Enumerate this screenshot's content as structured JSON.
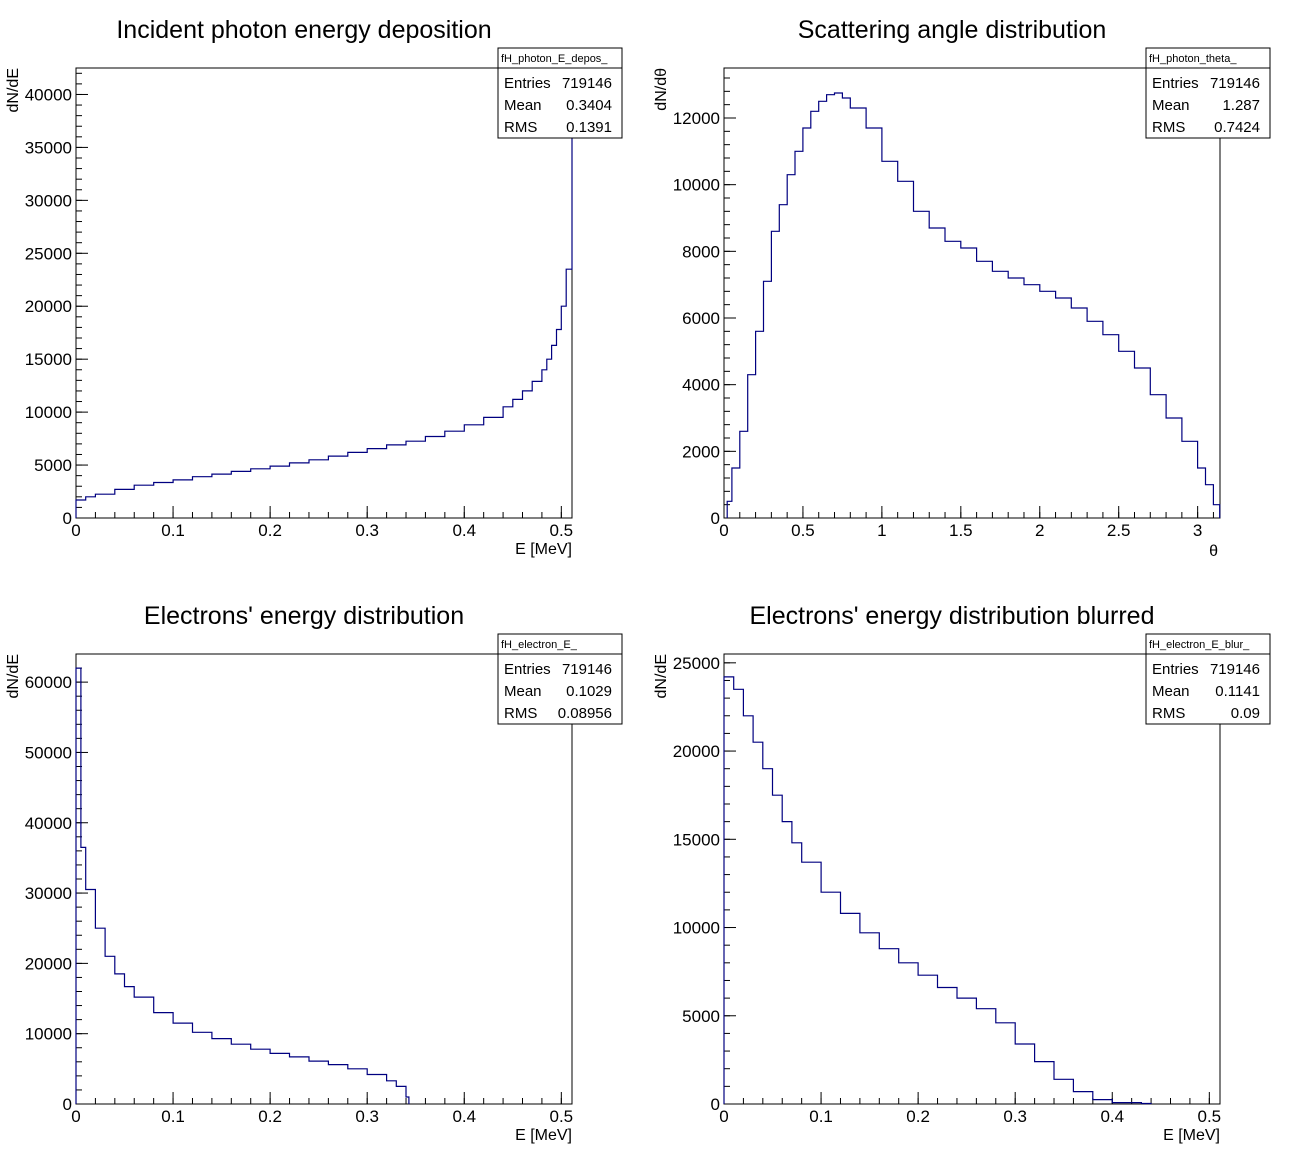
{
  "chart_data": [
    {
      "type": "histogram",
      "name": "fH_photon_E_depos_",
      "title": "Incident photon energy deposition",
      "xlabel": "E [MeV]",
      "ylabel": "dN/dE",
      "xlim": [
        0,
        0.511
      ],
      "ylim": [
        0,
        42500
      ],
      "xticks": [
        "0",
        "0.1",
        "0.2",
        "0.3",
        "0.4",
        "0.5"
      ],
      "yticks": [
        "0",
        "5000",
        "10000",
        "15000",
        "20000",
        "25000",
        "30000",
        "35000",
        "40000"
      ],
      "stats": {
        "header": "fH_photon_E_depos_",
        "entries": "719146",
        "mean": "0.3404",
        "rms": "0.1391"
      },
      "bins": [
        [
          0,
          1700
        ],
        [
          0.01,
          2000
        ],
        [
          0.02,
          2250
        ],
        [
          0.04,
          2700
        ],
        [
          0.06,
          3100
        ],
        [
          0.08,
          3350
        ],
        [
          0.1,
          3600
        ],
        [
          0.12,
          3900
        ],
        [
          0.14,
          4150
        ],
        [
          0.16,
          4400
        ],
        [
          0.18,
          4650
        ],
        [
          0.2,
          4900
        ],
        [
          0.22,
          5200
        ],
        [
          0.24,
          5500
        ],
        [
          0.26,
          5850
        ],
        [
          0.28,
          6200
        ],
        [
          0.3,
          6550
        ],
        [
          0.32,
          6900
        ],
        [
          0.34,
          7250
        ],
        [
          0.36,
          7700
        ],
        [
          0.38,
          8200
        ],
        [
          0.4,
          8800
        ],
        [
          0.42,
          9500
        ],
        [
          0.44,
          10500
        ],
        [
          0.45,
          11200
        ],
        [
          0.46,
          12000
        ],
        [
          0.47,
          12900
        ],
        [
          0.48,
          14000
        ],
        [
          0.485,
          15000
        ],
        [
          0.49,
          16300
        ],
        [
          0.495,
          17800
        ],
        [
          0.5,
          20000
        ],
        [
          0.505,
          23500
        ],
        [
          0.511,
          42000
        ]
      ]
    },
    {
      "type": "histogram",
      "name": "fH_photon_theta_",
      "title": "Scattering angle distribution",
      "xlabel": "θ",
      "ylabel": "dN/dθ",
      "xlim": [
        0,
        3.1416
      ],
      "ylim": [
        0,
        13500
      ],
      "xticks": [
        "0",
        "0.5",
        "1",
        "1.5",
        "2",
        "2.5",
        "3"
      ],
      "yticks": [
        "0",
        "2000",
        "4000",
        "6000",
        "8000",
        "10000",
        "12000"
      ],
      "stats": {
        "header": "fH_photon_theta_",
        "entries": "719146",
        "mean": "1.287",
        "rms": "0.7424"
      },
      "bins": [
        [
          0.02,
          500
        ],
        [
          0.05,
          1500
        ],
        [
          0.1,
          2600
        ],
        [
          0.15,
          4300
        ],
        [
          0.2,
          5600
        ],
        [
          0.25,
          7100
        ],
        [
          0.3,
          8600
        ],
        [
          0.35,
          9400
        ],
        [
          0.4,
          10300
        ],
        [
          0.45,
          11000
        ],
        [
          0.5,
          11700
        ],
        [
          0.55,
          12200
        ],
        [
          0.6,
          12500
        ],
        [
          0.65,
          12700
        ],
        [
          0.7,
          12750
        ],
        [
          0.75,
          12600
        ],
        [
          0.8,
          12300
        ],
        [
          0.9,
          11700
        ],
        [
          1.0,
          10700
        ],
        [
          1.1,
          10100
        ],
        [
          1.2,
          9200
        ],
        [
          1.3,
          8700
        ],
        [
          1.4,
          8300
        ],
        [
          1.5,
          8100
        ],
        [
          1.6,
          7700
        ],
        [
          1.7,
          7400
        ],
        [
          1.8,
          7200
        ],
        [
          1.9,
          7000
        ],
        [
          2.0,
          6800
        ],
        [
          2.1,
          6600
        ],
        [
          2.2,
          6300
        ],
        [
          2.3,
          5900
        ],
        [
          2.4,
          5500
        ],
        [
          2.5,
          5000
        ],
        [
          2.6,
          4500
        ],
        [
          2.7,
          3700
        ],
        [
          2.8,
          3000
        ],
        [
          2.9,
          2300
        ],
        [
          3.0,
          1500
        ],
        [
          3.05,
          1000
        ],
        [
          3.1,
          400
        ],
        [
          3.14,
          0
        ]
      ]
    },
    {
      "type": "histogram",
      "name": "fH_electron_E_",
      "title": "Electrons' energy distribution",
      "xlabel": "E [MeV]",
      "ylabel": "dN/dE",
      "xlim": [
        0,
        0.511
      ],
      "ylim": [
        0,
        64000
      ],
      "xticks": [
        "0",
        "0.1",
        "0.2",
        "0.3",
        "0.4",
        "0.5"
      ],
      "yticks": [
        "0",
        "10000",
        "20000",
        "30000",
        "40000",
        "50000",
        "60000"
      ],
      "stats": {
        "header": "fH_electron_E_",
        "entries": "719146",
        "mean": "0.1029",
        "rms": "0.08956"
      },
      "bins": [
        [
          0,
          62000
        ],
        [
          0.005,
          36500
        ],
        [
          0.01,
          30500
        ],
        [
          0.02,
          25000
        ],
        [
          0.03,
          21000
        ],
        [
          0.04,
          18500
        ],
        [
          0.05,
          16700
        ],
        [
          0.06,
          15200
        ],
        [
          0.08,
          13000
        ],
        [
          0.1,
          11500
        ],
        [
          0.12,
          10200
        ],
        [
          0.14,
          9300
        ],
        [
          0.16,
          8500
        ],
        [
          0.18,
          7800
        ],
        [
          0.2,
          7200
        ],
        [
          0.22,
          6700
        ],
        [
          0.24,
          6100
        ],
        [
          0.26,
          5600
        ],
        [
          0.28,
          5000
        ],
        [
          0.3,
          4200
        ],
        [
          0.32,
          3300
        ],
        [
          0.33,
          2500
        ],
        [
          0.34,
          1000
        ],
        [
          0.343,
          0
        ]
      ]
    },
    {
      "type": "histogram",
      "name": "fH_electron_E_blur_",
      "title": "Electrons' energy distribution blurred",
      "xlabel": "E [MeV]",
      "ylabel": "dN/dE",
      "xlim": [
        0,
        0.511
      ],
      "ylim": [
        0,
        25500
      ],
      "xticks": [
        "0",
        "0.1",
        "0.2",
        "0.3",
        "0.4",
        "0.5"
      ],
      "yticks": [
        "0",
        "5000",
        "10000",
        "15000",
        "20000",
        "25000"
      ],
      "stats": {
        "header": "fH_electron_E_blur_",
        "entries": "719146",
        "mean": "0.1141",
        "rms": "0.09"
      },
      "bins": [
        [
          0,
          24200
        ],
        [
          0.01,
          23500
        ],
        [
          0.02,
          22000
        ],
        [
          0.03,
          20500
        ],
        [
          0.04,
          19000
        ],
        [
          0.05,
          17500
        ],
        [
          0.06,
          16000
        ],
        [
          0.07,
          14800
        ],
        [
          0.08,
          13700
        ],
        [
          0.1,
          12000
        ],
        [
          0.12,
          10800
        ],
        [
          0.14,
          9700
        ],
        [
          0.16,
          8800
        ],
        [
          0.18,
          8000
        ],
        [
          0.2,
          7300
        ],
        [
          0.22,
          6600
        ],
        [
          0.24,
          6000
        ],
        [
          0.26,
          5400
        ],
        [
          0.28,
          4600
        ],
        [
          0.3,
          3400
        ],
        [
          0.32,
          2400
        ],
        [
          0.34,
          1400
        ],
        [
          0.36,
          700
        ],
        [
          0.38,
          250
        ],
        [
          0.4,
          80
        ],
        [
          0.43,
          30
        ],
        [
          0.44,
          0
        ]
      ]
    }
  ]
}
